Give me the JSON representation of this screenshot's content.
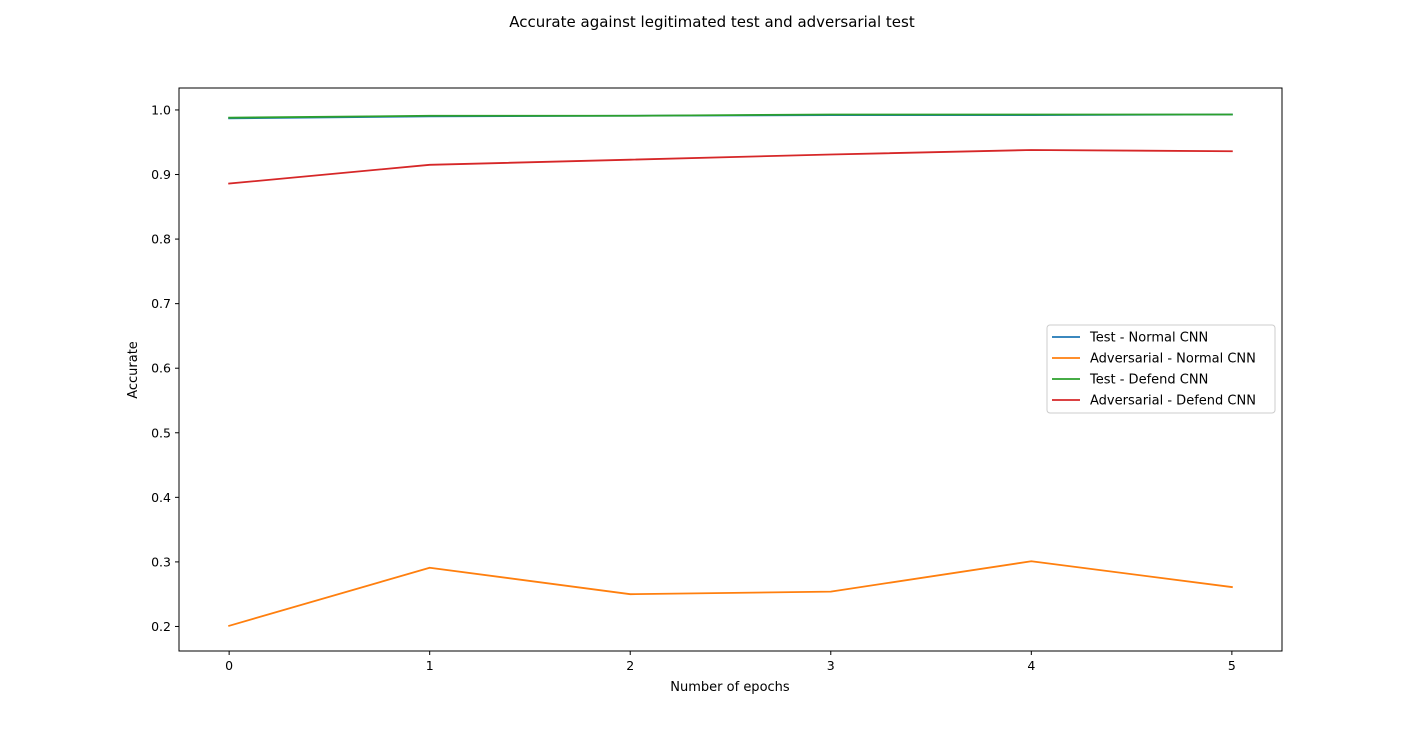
{
  "chart_data": {
    "type": "line",
    "title": "Accurate against legitimated test and adversarial test",
    "xlabel": "Number of epochs",
    "ylabel": "Accurate",
    "x": [
      0,
      1,
      2,
      3,
      4,
      5
    ],
    "xlim": [
      -0.25,
      5.25
    ],
    "ylim": [
      0.162,
      1.034
    ],
    "x_ticks": [
      0,
      1,
      2,
      3,
      4,
      5
    ],
    "x_tick_labels": [
      "0",
      "1",
      "2",
      "3",
      "4",
      "5"
    ],
    "y_ticks": [
      0.2,
      0.3,
      0.4,
      0.5,
      0.6,
      0.7,
      0.8,
      0.9,
      1.0
    ],
    "y_tick_labels": [
      "0.2",
      "0.3",
      "0.4",
      "0.5",
      "0.6",
      "0.7",
      "0.8",
      "0.9",
      "1.0"
    ],
    "grid": false,
    "legend_position": "center-right",
    "series": [
      {
        "name": "Test - Normal CNN",
        "color": "#1f77b4",
        "values": [
          0.987,
          0.99,
          0.991,
          0.992,
          0.992,
          0.993
        ]
      },
      {
        "name": "Adversarial - Normal CNN",
        "color": "#ff7f0e",
        "values": [
          0.201,
          0.291,
          0.25,
          0.254,
          0.301,
          0.261
        ]
      },
      {
        "name": "Test - Defend CNN",
        "color": "#2ca02c",
        "values": [
          0.988,
          0.991,
          0.991,
          0.993,
          0.993,
          0.993
        ]
      },
      {
        "name": "Adversarial - Defend CNN",
        "color": "#d62728",
        "values": [
          0.886,
          0.915,
          0.923,
          0.931,
          0.938,
          0.936
        ]
      }
    ]
  }
}
